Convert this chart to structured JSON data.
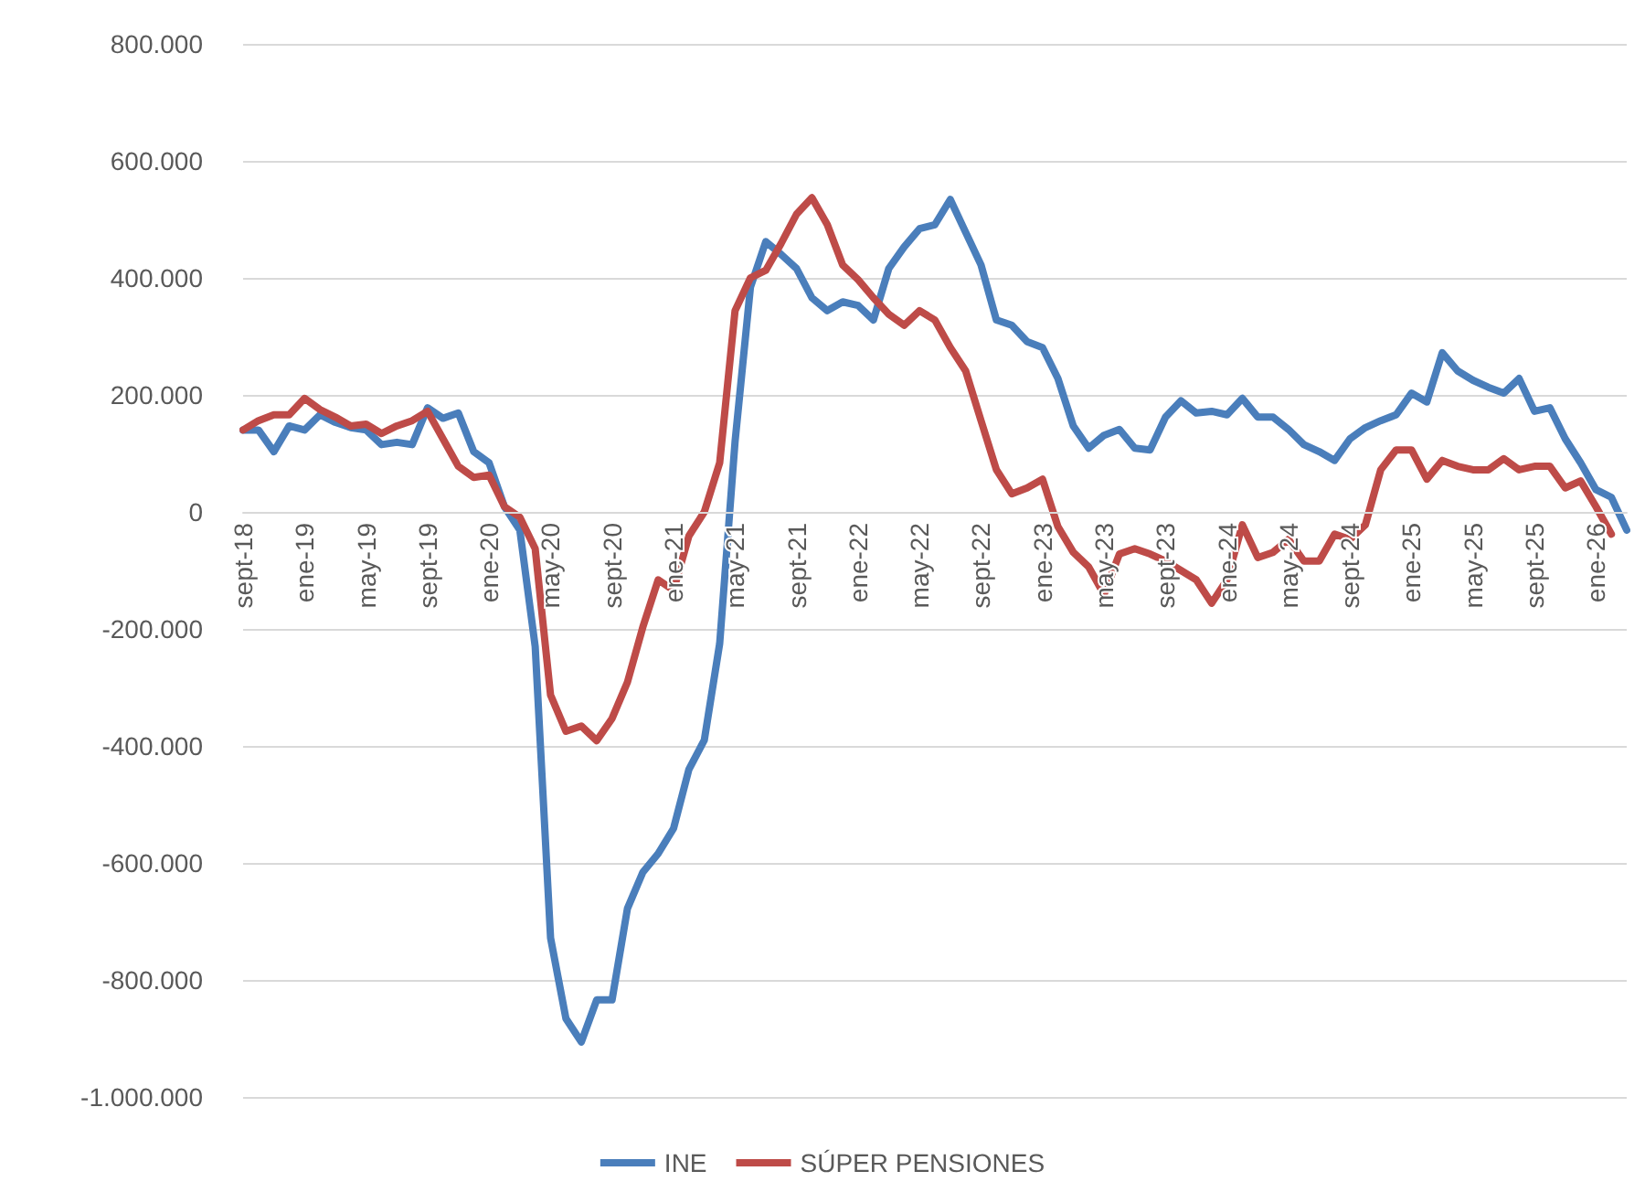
{
  "chart_data": {
    "type": "line",
    "categories": [
      "sept-18",
      null,
      null,
      null,
      "ene-19",
      null,
      null,
      null,
      "may-19",
      null,
      null,
      null,
      "sept-19",
      null,
      null,
      null,
      "ene-20",
      null,
      null,
      null,
      "may-20",
      null,
      null,
      null,
      "sept-20",
      null,
      null,
      null,
      "ene-21",
      null,
      null,
      null,
      "may-21",
      null,
      null,
      null,
      "sept-21",
      null,
      null,
      null,
      "ene-22",
      null,
      null,
      null,
      "may-22",
      null,
      null,
      null,
      "sept-22",
      null,
      null,
      null,
      "ene-23",
      null,
      null,
      null,
      "may-23",
      null,
      null,
      null,
      "sept-23",
      null,
      null,
      null,
      "ene-24",
      null,
      null,
      null,
      "may-24",
      null,
      null,
      null,
      "sept-24",
      null,
      null,
      null,
      "ene-25",
      null,
      null,
      null,
      "may-25",
      null,
      null,
      null,
      "sept-25",
      null,
      null,
      null,
      "ene-26",
      null,
      null
    ],
    "series": [
      {
        "name": "INE",
        "color": "#4a7ebb",
        "values": [
          140000,
          140000,
          103000,
          147000,
          140000,
          166000,
          153000,
          144000,
          140000,
          115000,
          119000,
          115000,
          178000,
          160000,
          169000,
          103000,
          84000,
          9000,
          -31000,
          -230000,
          -728000,
          -866000,
          -906000,
          -834000,
          -834000,
          -678000,
          -616000,
          -584000,
          -541000,
          -440000,
          -390000,
          -225000,
          120000,
          384000,
          462000,
          440000,
          416000,
          366000,
          344000,
          359000,
          353000,
          328000,
          416000,
          453000,
          484000,
          491000,
          534000,
          478000,
          422000,
          328000,
          319000,
          291000,
          281000,
          228000,
          147000,
          109000,
          131000,
          141000,
          109000,
          106000,
          162000,
          190000,
          169000,
          172000,
          166000,
          194000,
          162000,
          162000,
          141000,
          115000,
          103000,
          88000,
          125000,
          144000,
          156000,
          166000,
          203000,
          188000,
          272000,
          241000,
          225000,
          213000,
          203000,
          228000,
          172000,
          178000,
          125000,
          84000,
          38000,
          25000,
          -31000
        ]
      },
      {
        "name": "SÚPER PENSIONES",
        "color": "#be4b48",
        "values": [
          140000,
          156000,
          166000,
          166000,
          194000,
          175000,
          162000,
          147000,
          150000,
          134000,
          147000,
          156000,
          172000,
          125000,
          78000,
          59000,
          63000,
          9000,
          -9000,
          -63000,
          -313000,
          -375000,
          -366000,
          -391000,
          -353000,
          -291000,
          -197000,
          -116000,
          -134000,
          -41000,
          0,
          84000,
          344000,
          400000,
          413000,
          459000,
          509000,
          537000,
          491000,
          422000,
          397000,
          366000,
          338000,
          319000,
          344000,
          328000,
          281000,
          241000,
          156000,
          72000,
          31000,
          41000,
          56000,
          -25000,
          -69000,
          -94000,
          -141000,
          -72000,
          -63000,
          -72000,
          -84000,
          -100000,
          -116000,
          -156000,
          -116000,
          -22000,
          -78000,
          -69000,
          -47000,
          -84000,
          -84000,
          -38000,
          -47000,
          -22000,
          72000,
          106000,
          106000,
          56000,
          88000,
          78000,
          72000,
          72000,
          91000,
          72000,
          78000,
          78000,
          41000,
          53000,
          9000,
          -38000,
          null
        ]
      }
    ],
    "ylim": [
      -1000000,
      800000
    ],
    "yticks": [
      {
        "value": -1000000,
        "label": "-1.000.000"
      },
      {
        "value": -800000,
        "label": "-800.000"
      },
      {
        "value": -600000,
        "label": "-600.000"
      },
      {
        "value": -400000,
        "label": "-400.000"
      },
      {
        "value": -200000,
        "label": "-200.000"
      },
      {
        "value": 0,
        "label": "0"
      },
      {
        "value": 200000,
        "label": "200.000"
      },
      {
        "value": 400000,
        "label": "400.000"
      },
      {
        "value": 600000,
        "label": "600.000"
      },
      {
        "value": 800000,
        "label": "800.000"
      }
    ],
    "grid": "y",
    "legend": "bottom",
    "marker": "none",
    "line_style": "solid"
  }
}
